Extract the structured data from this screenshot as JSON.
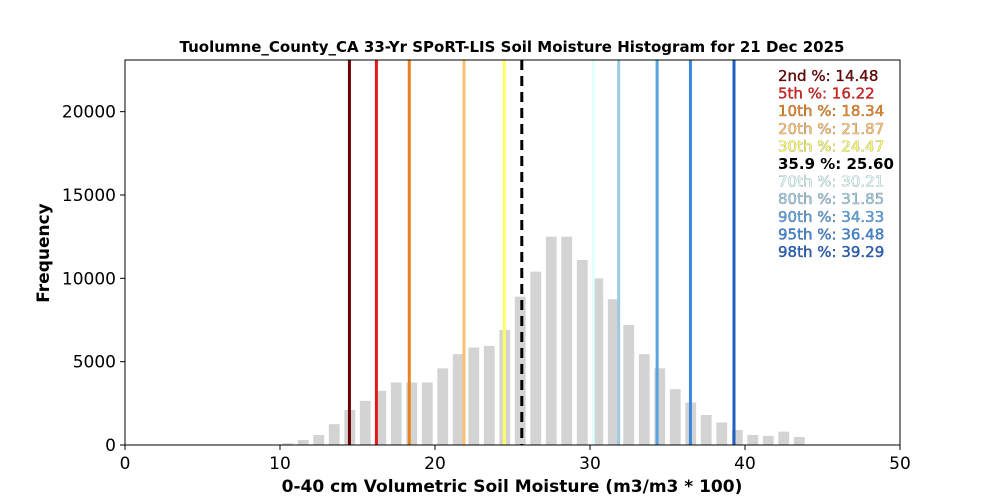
{
  "chart_data": {
    "type": "bar",
    "title": "Tuolumne_County_CA 33-Yr SPoRT-LIS Soil Moisture Histogram for 21 Dec 2025",
    "xlabel": "0-40 cm Volumetric Soil Moisture (m3/m3 * 100)",
    "ylabel": "Frequency",
    "xlim": [
      0,
      50
    ],
    "ylim": [
      0,
      23100
    ],
    "xticks": [
      "0",
      "10",
      "20",
      "30",
      "40",
      "50"
    ],
    "yticks": [
      "0",
      "5000",
      "10000",
      "15000",
      "20000"
    ],
    "xtick_values": [
      0,
      10,
      20,
      30,
      40,
      50
    ],
    "ytick_values": [
      0,
      5000,
      10000,
      15000,
      20000
    ],
    "bar_color": "#d3d3d3",
    "bar_width": 0.7,
    "bins": [
      {
        "x": 9.5,
        "count": 30
      },
      {
        "x": 10.5,
        "count": 100
      },
      {
        "x": 11.5,
        "count": 300
      },
      {
        "x": 12.5,
        "count": 600
      },
      {
        "x": 13.5,
        "count": 1250
      },
      {
        "x": 14.5,
        "count": 2100
      },
      {
        "x": 15.5,
        "count": 2650
      },
      {
        "x": 16.5,
        "count": 3250
      },
      {
        "x": 17.5,
        "count": 3750
      },
      {
        "x": 18.5,
        "count": 3750
      },
      {
        "x": 19.5,
        "count": 3750
      },
      {
        "x": 20.5,
        "count": 4600
      },
      {
        "x": 21.5,
        "count": 5450
      },
      {
        "x": 22.5,
        "count": 5850
      },
      {
        "x": 23.5,
        "count": 5950
      },
      {
        "x": 24.5,
        "count": 6900
      },
      {
        "x": 25.5,
        "count": 8900
      },
      {
        "x": 26.5,
        "count": 10400
      },
      {
        "x": 27.5,
        "count": 12500
      },
      {
        "x": 28.5,
        "count": 12500
      },
      {
        "x": 29.5,
        "count": 11100
      },
      {
        "x": 30.5,
        "count": 10000
      },
      {
        "x": 31.5,
        "count": 8750
      },
      {
        "x": 32.5,
        "count": 7200
      },
      {
        "x": 33.5,
        "count": 5450
      },
      {
        "x": 34.5,
        "count": 4600
      },
      {
        "x": 35.5,
        "count": 3350
      },
      {
        "x": 36.5,
        "count": 2550
      },
      {
        "x": 37.5,
        "count": 1800
      },
      {
        "x": 38.5,
        "count": 1350
      },
      {
        "x": 39.5,
        "count": 900
      },
      {
        "x": 40.5,
        "count": 600
      },
      {
        "x": 41.5,
        "count": 550
      },
      {
        "x": 42.5,
        "count": 800
      },
      {
        "x": 43.5,
        "count": 480
      }
    ],
    "percentiles": [
      {
        "label": "2nd %: 14.48",
        "value": 14.48,
        "color": "#6b0000",
        "style": "solid"
      },
      {
        "label": "5th %: 16.22",
        "value": 16.22,
        "color": "#e31a1c",
        "style": "solid"
      },
      {
        "label": "10th %: 18.34",
        "value": 18.34,
        "color": "#e8821e",
        "style": "solid"
      },
      {
        "label": "20th %: 21.87",
        "value": 21.87,
        "color": "#fdbf6f",
        "style": "solid"
      },
      {
        "label": "30th %: 24.47",
        "value": 24.47,
        "color": "#ffff66",
        "style": "solid"
      },
      {
        "label": "35.9 %: 25.60",
        "value": 25.6,
        "color": "#000000",
        "style": "dashed"
      },
      {
        "label": "70th %: 30.21",
        "value": 30.21,
        "color": "#e0ffff",
        "style": "solid"
      },
      {
        "label": "80th %: 31.85",
        "value": 31.85,
        "color": "#9ecae1",
        "style": "solid"
      },
      {
        "label": "90th %: 34.33",
        "value": 34.33,
        "color": "#5aa2e0",
        "style": "solid"
      },
      {
        "label": "95th %: 36.48",
        "value": 36.48,
        "color": "#3a86d8",
        "style": "solid"
      },
      {
        "label": "98th %: 39.29",
        "value": 39.29,
        "color": "#1f5fbf",
        "style": "solid"
      }
    ],
    "legend_placement": "top-right",
    "grid": false
  }
}
